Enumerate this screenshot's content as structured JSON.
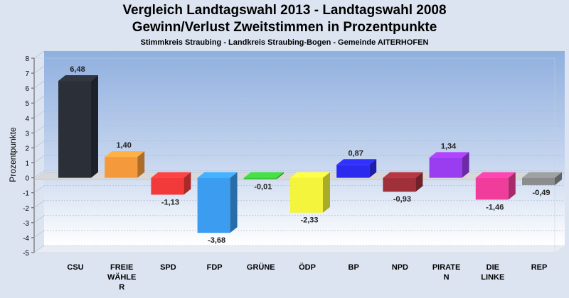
{
  "chart_data": {
    "type": "bar",
    "title": "Vergleich Landtagswahl 2013 - Landtagswahl 2008",
    "subtitle": "Gewinn/Verlust Zweitstimmen in Prozentpunkte",
    "caption": "Stimmkreis Straubing - Landkreis Straubing-Bogen - Gemeinde AITERHOFEN",
    "ylabel": "Prozentpunkte",
    "xlabel": "",
    "ylim": [
      -5,
      8
    ],
    "yticks": [
      8,
      7,
      6,
      5,
      4,
      3,
      2,
      1,
      0,
      -1,
      -2,
      -3,
      -4,
      -5
    ],
    "grid": true,
    "categories": [
      [
        "CSU"
      ],
      [
        "FREIE",
        "WÄHLE",
        "R"
      ],
      [
        "SPD"
      ],
      [
        "FDP"
      ],
      [
        "GRÜNE"
      ],
      [
        "ÖDP"
      ],
      [
        "BP"
      ],
      [
        "NPD"
      ],
      [
        "PIRATE",
        "N"
      ],
      [
        "DIE",
        "LINKE"
      ],
      [
        "REP"
      ]
    ],
    "values": [
      6.48,
      1.4,
      -1.13,
      -3.68,
      -0.01,
      -2.33,
      0.87,
      -0.93,
      1.34,
      -1.46,
      -0.49
    ],
    "labels": [
      "6,48",
      "1,40",
      "-1,13",
      "-3,68",
      "-0,01",
      "-2,33",
      "0,87",
      "-0,93",
      "1,34",
      "-1,46",
      "-0,49"
    ],
    "colors": [
      "#2b2f38",
      "#f59a3c",
      "#f23a3a",
      "#3b9cf0",
      "#3cc43c",
      "#f4f43c",
      "#2b2bf0",
      "#a0303a",
      "#9a3cf0",
      "#f03c9a",
      "#8a8c8e"
    ]
  }
}
